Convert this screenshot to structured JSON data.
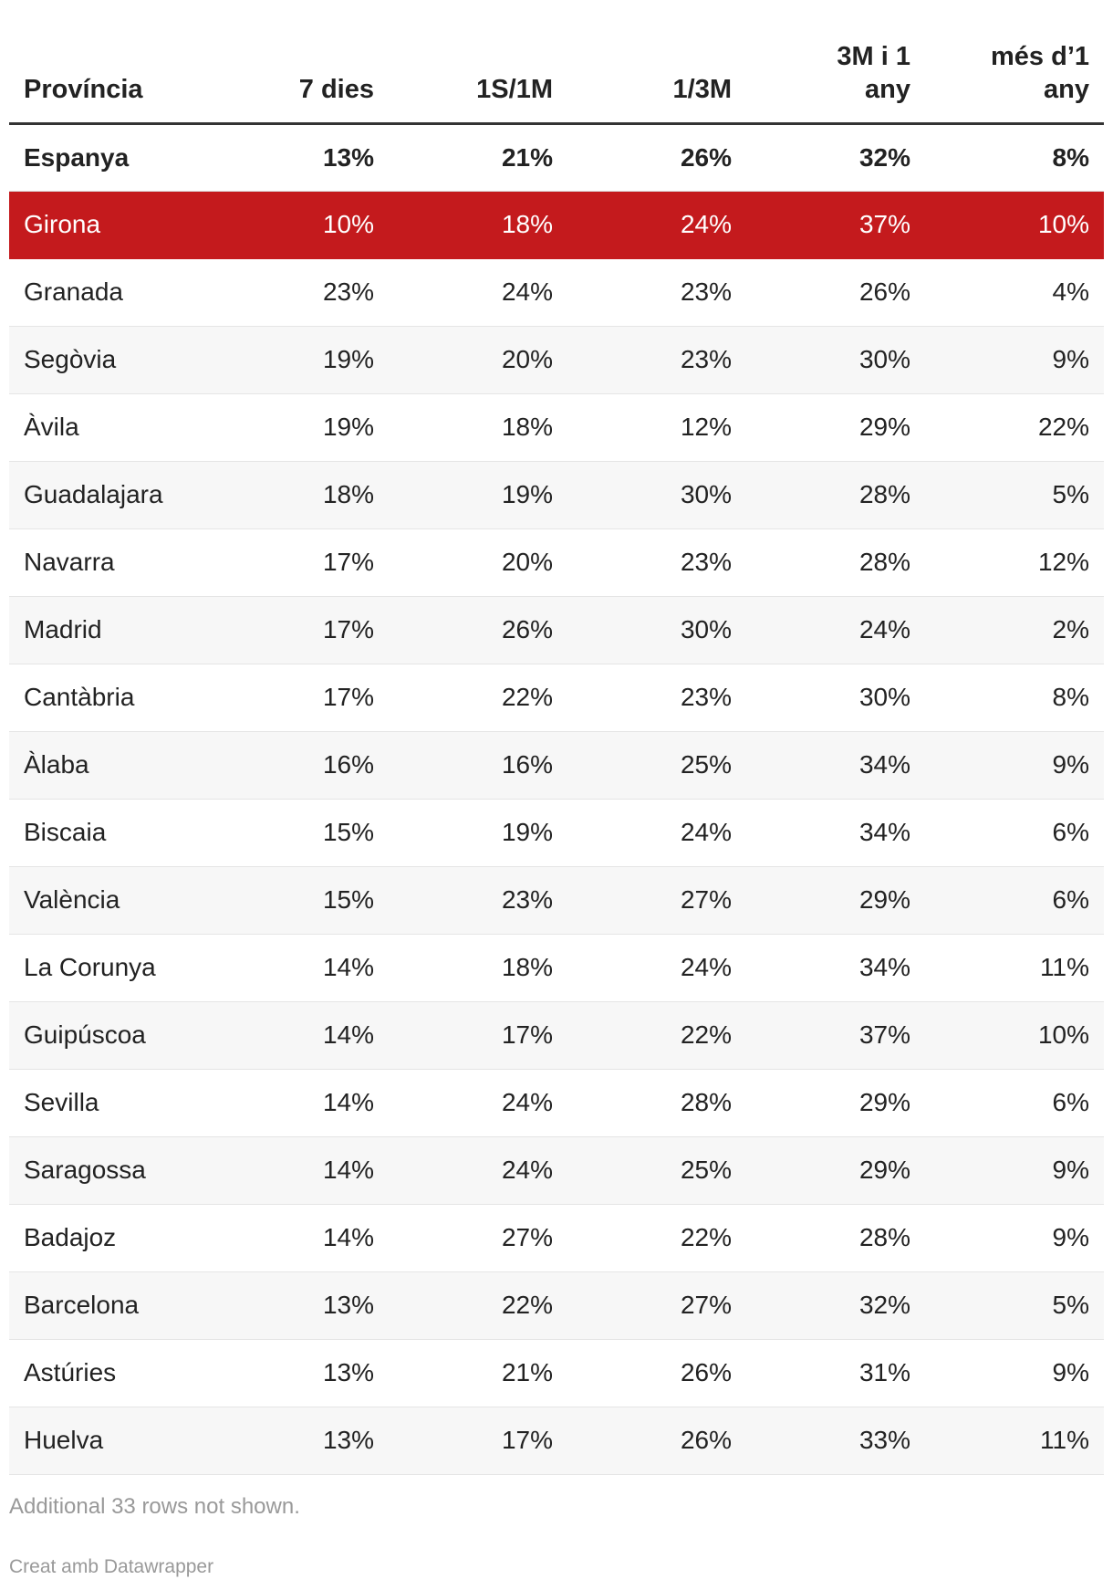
{
  "chart_data": {
    "type": "table",
    "columns": [
      "Província",
      "7 dies",
      "1S/1M",
      "1/3M",
      "3M i 1 any",
      "més d’1 any"
    ],
    "rows": [
      {
        "name": "Espanya",
        "values": [
          "13%",
          "21%",
          "26%",
          "32%",
          "8%"
        ],
        "style": "total"
      },
      {
        "name": "Girona",
        "values": [
          "10%",
          "18%",
          "24%",
          "37%",
          "10%"
        ],
        "style": "highlight"
      },
      {
        "name": "Granada",
        "values": [
          "23%",
          "24%",
          "23%",
          "26%",
          "4%"
        ],
        "style": "plain"
      },
      {
        "name": "Segòvia",
        "values": [
          "19%",
          "20%",
          "23%",
          "30%",
          "9%"
        ],
        "style": "alt"
      },
      {
        "name": "Àvila",
        "values": [
          "19%",
          "18%",
          "12%",
          "29%",
          "22%"
        ],
        "style": "plain"
      },
      {
        "name": "Guadalajara",
        "values": [
          "18%",
          "19%",
          "30%",
          "28%",
          "5%"
        ],
        "style": "alt"
      },
      {
        "name": "Navarra",
        "values": [
          "17%",
          "20%",
          "23%",
          "28%",
          "12%"
        ],
        "style": "plain"
      },
      {
        "name": "Madrid",
        "values": [
          "17%",
          "26%",
          "30%",
          "24%",
          "2%"
        ],
        "style": "alt"
      },
      {
        "name": "Cantàbria",
        "values": [
          "17%",
          "22%",
          "23%",
          "30%",
          "8%"
        ],
        "style": "plain"
      },
      {
        "name": "Àlaba",
        "values": [
          "16%",
          "16%",
          "25%",
          "34%",
          "9%"
        ],
        "style": "alt"
      },
      {
        "name": "Biscaia",
        "values": [
          "15%",
          "19%",
          "24%",
          "34%",
          "6%"
        ],
        "style": "plain"
      },
      {
        "name": "València",
        "values": [
          "15%",
          "23%",
          "27%",
          "29%",
          "6%"
        ],
        "style": "alt"
      },
      {
        "name": "La Corunya",
        "values": [
          "14%",
          "18%",
          "24%",
          "34%",
          "11%"
        ],
        "style": "plain"
      },
      {
        "name": "Guipúscoa",
        "values": [
          "14%",
          "17%",
          "22%",
          "37%",
          "10%"
        ],
        "style": "alt"
      },
      {
        "name": "Sevilla",
        "values": [
          "14%",
          "24%",
          "28%",
          "29%",
          "6%"
        ],
        "style": "plain"
      },
      {
        "name": "Saragossa",
        "values": [
          "14%",
          "24%",
          "25%",
          "29%",
          "9%"
        ],
        "style": "alt"
      },
      {
        "name": "Badajoz",
        "values": [
          "14%",
          "27%",
          "22%",
          "28%",
          "9%"
        ],
        "style": "plain"
      },
      {
        "name": "Barcelona",
        "values": [
          "13%",
          "22%",
          "27%",
          "32%",
          "5%"
        ],
        "style": "alt"
      },
      {
        "name": "Astúries",
        "values": [
          "13%",
          "21%",
          "26%",
          "31%",
          "9%"
        ],
        "style": "plain"
      },
      {
        "name": "Huelva",
        "values": [
          "13%",
          "17%",
          "26%",
          "33%",
          "11%"
        ],
        "style": "alt"
      }
    ],
    "highlight_color": "#c41a1d",
    "note": "Additional 33 rows not shown.",
    "credit": "Creat amb Datawrapper"
  }
}
